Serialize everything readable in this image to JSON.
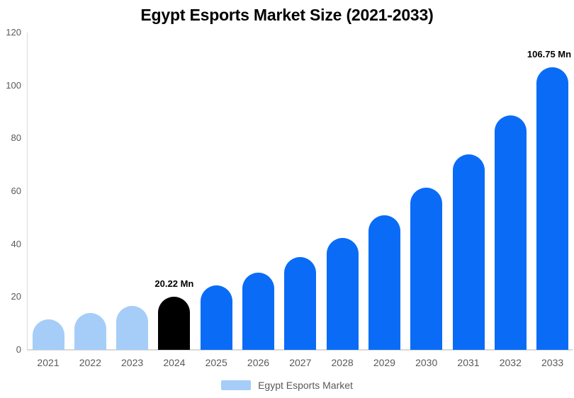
{
  "chart_data": {
    "type": "bar",
    "title": "Egypt Esports Market Size (2021-2033)",
    "categories": [
      "2021",
      "2022",
      "2023",
      "2024",
      "2025",
      "2026",
      "2027",
      "2028",
      "2029",
      "2030",
      "2031",
      "2032",
      "2033"
    ],
    "values": [
      11.4,
      13.8,
      16.6,
      20.22,
      24.3,
      29.3,
      35.2,
      42.4,
      51.0,
      61.3,
      73.8,
      88.7,
      106.75
    ],
    "bar_colors": [
      "#a5cdf8",
      "#a5cdf8",
      "#a5cdf8",
      "#000000",
      "#0a6cf6",
      "#0a6cf6",
      "#0a6cf6",
      "#0a6cf6",
      "#0a6cf6",
      "#0a6cf6",
      "#0a6cf6",
      "#0a6cf6",
      "#0a6cf6"
    ],
    "annotations": [
      {
        "category": "2024",
        "text": "20.22 Mn"
      },
      {
        "category": "2033",
        "text": "106.75 Mn"
      }
    ],
    "yticks": [
      0,
      20,
      40,
      60,
      80,
      100,
      120
    ],
    "ylim": [
      0,
      120
    ],
    "xlabel": "",
    "ylabel": "",
    "grid": false,
    "legend_position": "bottom"
  },
  "legend": {
    "label": "Egypt Esports Market",
    "swatch_color": "#a5cdf8"
  },
  "colors": {
    "axis_line": "#d9d9d9",
    "tick_text": "#595959",
    "title_text": "#000000",
    "annotation_text": "#000000"
  }
}
